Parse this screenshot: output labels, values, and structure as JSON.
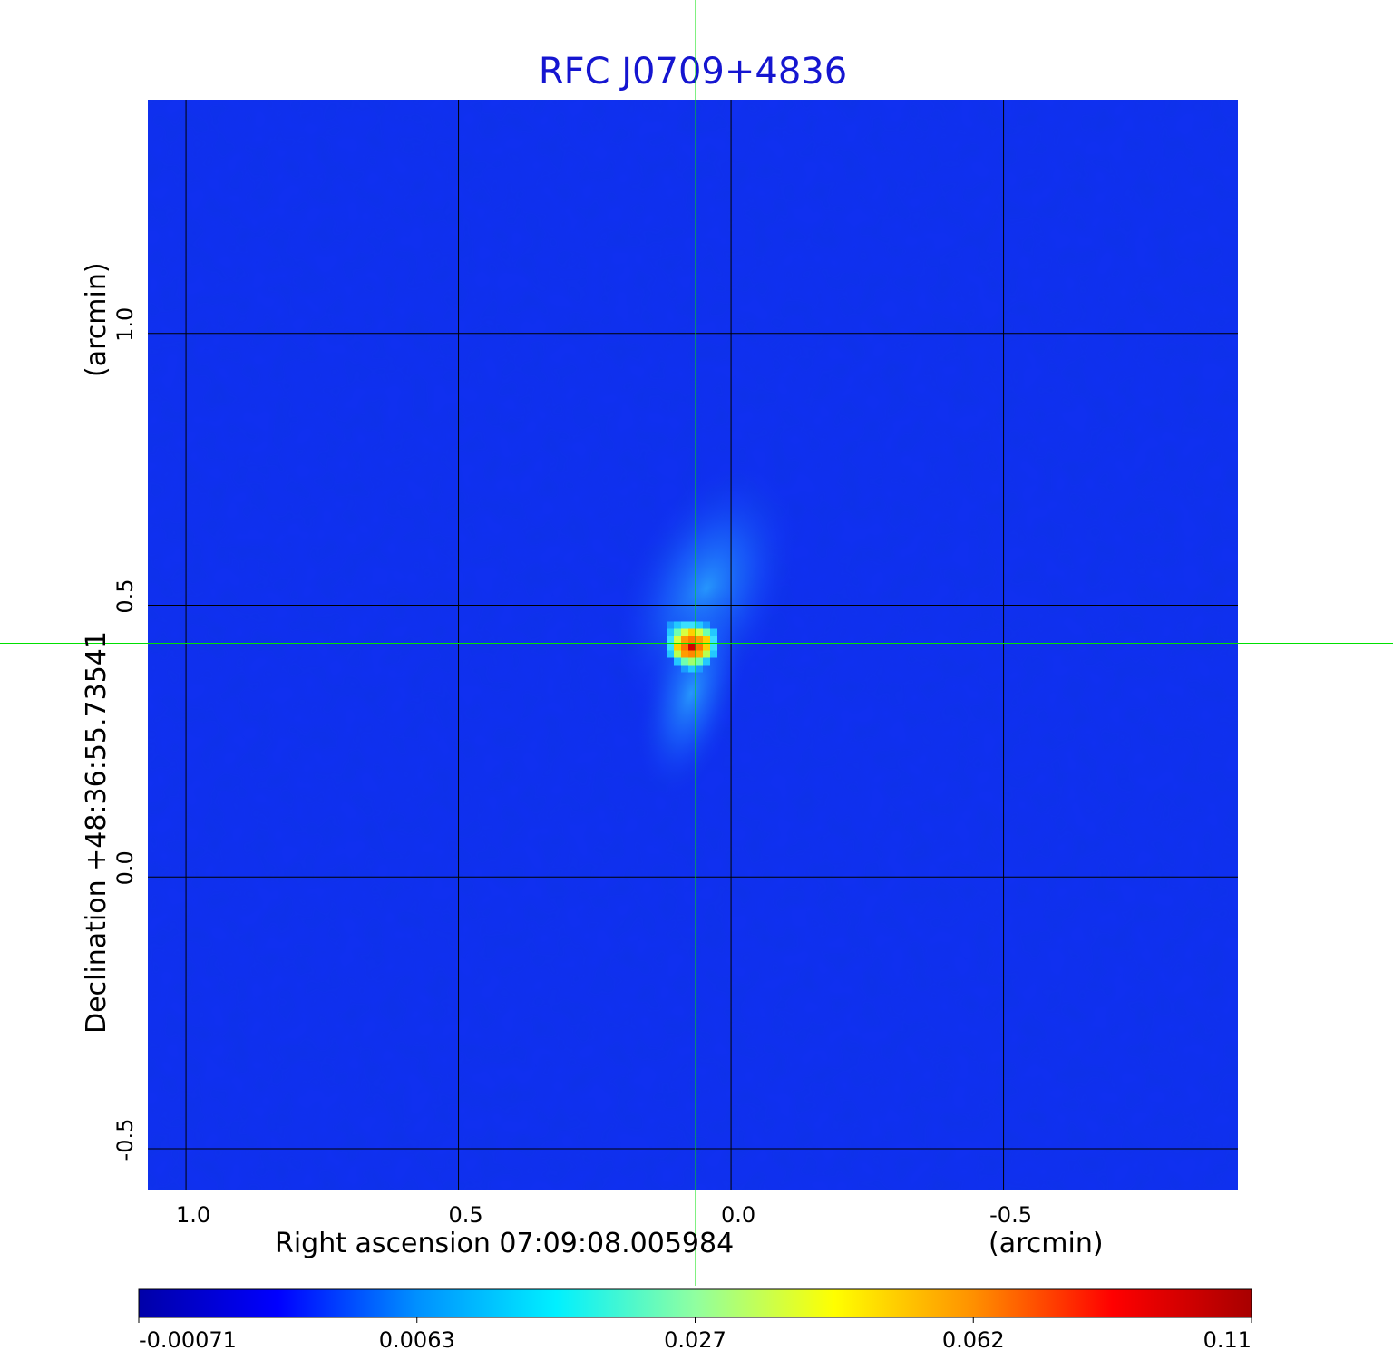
{
  "chart_data": {
    "type": "heatmap",
    "title": "RFC J0709+4836",
    "xlabel": "Right ascension  07:09:08.005984",
    "xunit": "(arcmin)",
    "ylabel": "Declination  +48:36:55.73541",
    "yunit": "(arcmin)",
    "x_ticks": [
      {
        "value": 1.0,
        "label": "1.0"
      },
      {
        "value": 0.5,
        "label": "0.5"
      },
      {
        "value": 0.0,
        "label": "0.0"
      },
      {
        "value": -0.5,
        "label": "-0.5"
      }
    ],
    "y_ticks": [
      {
        "value": 1.0,
        "label": "1.0"
      },
      {
        "value": 0.5,
        "label": "0.5"
      },
      {
        "value": 0.0,
        "label": "0.0"
      },
      {
        "value": -0.5,
        "label": "-0.5"
      }
    ],
    "xlim": [
      1.07,
      -0.93
    ],
    "ylim": [
      -0.575,
      1.43
    ],
    "x_direction": "decreasing-right",
    "grid": true,
    "grid_color": "#000000",
    "background_color": "#1030f0",
    "source": {
      "x": 0.065,
      "y": 0.43,
      "peak": 0.11
    },
    "crosshair": {
      "x": 0.065,
      "y": 0.43,
      "color": "#00e000"
    },
    "colorbar": {
      "orientation": "horizontal",
      "placement": "bottom",
      "colormap": "jet",
      "tick_labels": [
        "-0.00071",
        "0.0063",
        "0.027",
        "0.062",
        "0.11"
      ],
      "colors": [
        "#0000a8",
        "#0000ff",
        "#0090ff",
        "#00f0ff",
        "#90ffa0",
        "#ffff00",
        "#ff9000",
        "#ff0000",
        "#a80000"
      ]
    }
  }
}
